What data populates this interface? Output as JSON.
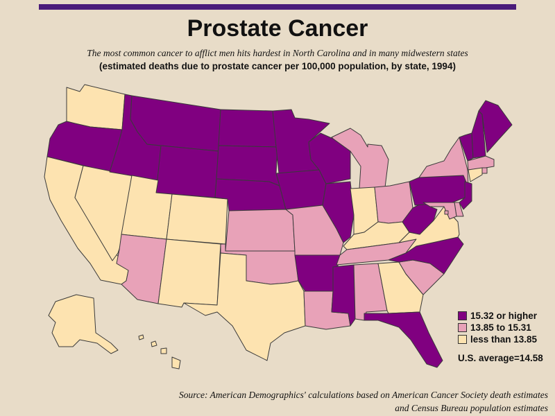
{
  "header": {
    "title": "Prostate Cancer",
    "subtitle": "The most common cancer to afflict men hits hardest in North Carolina and in many midwestern states",
    "subtitle2": "(estimated deaths due to prostate cancer per 100,000 population, by state, 1994)"
  },
  "colors": {
    "high": "#800080",
    "mid": "#e8a2b8",
    "low": "#fde3b0",
    "border": "#3a3a3a",
    "background": "#e8dcc8",
    "bar": "#4b1c7a"
  },
  "legend": {
    "items": [
      {
        "label": "15.32 or higher",
        "category": "high"
      },
      {
        "label": "13.85 to 15.31",
        "category": "mid"
      },
      {
        "label": "less than 13.85",
        "category": "low"
      }
    ],
    "average": "U.S. average=14.58"
  },
  "source": {
    "line1": "Source: American Demographics' calculations based on American Cancer Society death estimates",
    "line2": "and Census Bureau population estimates"
  },
  "map_data": {
    "states": {
      "WA": "low",
      "OR": "high",
      "CA": "low",
      "NV": "low",
      "ID": "high",
      "MT": "high",
      "WY": "high",
      "UT": "low",
      "AZ": "mid",
      "CO": "low",
      "NM": "low",
      "ND": "high",
      "SD": "high",
      "NE": "high",
      "KS": "mid",
      "OK": "mid",
      "TX": "low",
      "MN": "high",
      "IA": "high",
      "MO": "mid",
      "AR": "high",
      "LA": "mid",
      "WI": "high",
      "IL": "high",
      "MI": "mid",
      "IN": "low",
      "OH": "mid",
      "KY": "low",
      "TN": "mid",
      "MS": "high",
      "AL": "mid",
      "GA": "low",
      "FL": "high",
      "SC": "mid",
      "NC": "high",
      "VA": "low",
      "WV": "high",
      "PA": "high",
      "NY": "mid",
      "VT": "high",
      "NH": "high",
      "ME": "high",
      "MA": "mid",
      "CT": "low",
      "RI": "mid",
      "NJ": "high",
      "DE": "mid",
      "MD": "mid",
      "DC": "mid",
      "AK": "low",
      "HI": "low"
    }
  }
}
